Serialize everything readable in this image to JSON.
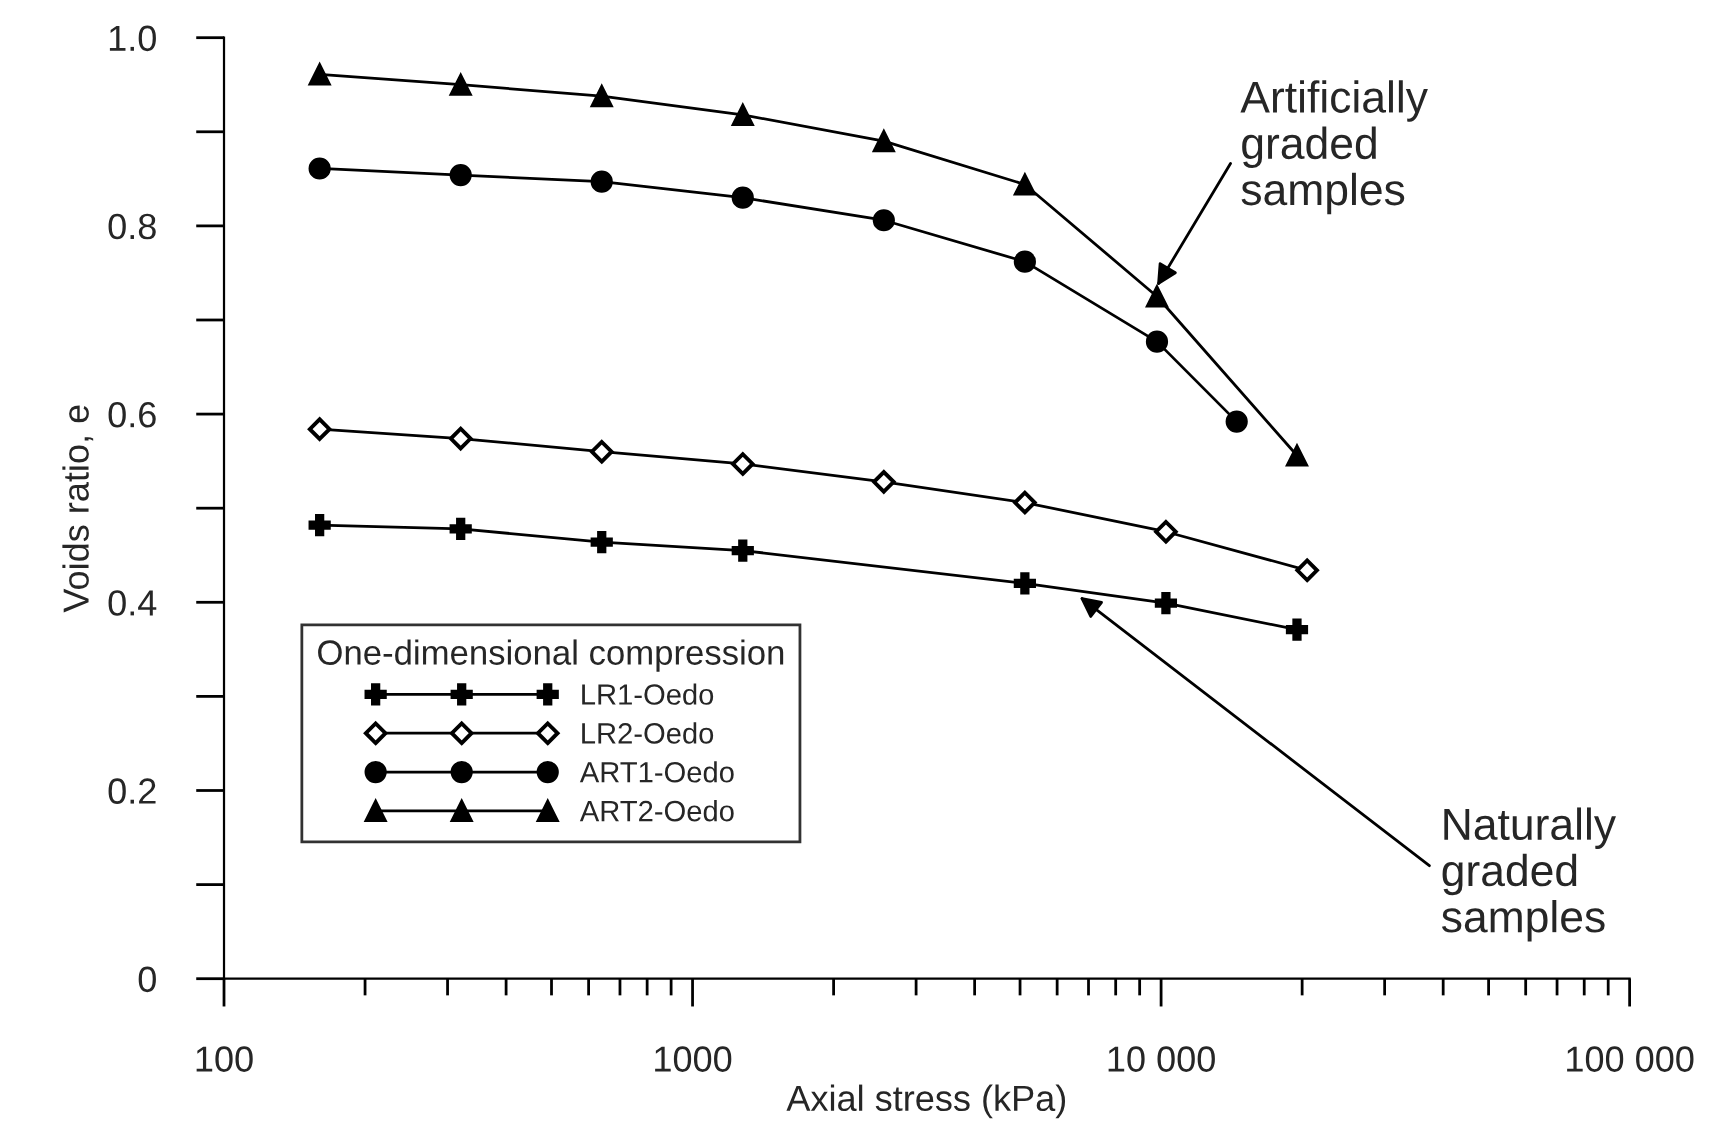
{
  "chart_data": {
    "type": "line",
    "xlabel": "Axial stress (kPa)",
    "ylabel": "Voids ratio, e",
    "legend_title": "One-dimensional compression",
    "log": "x",
    "xlim": [
      100,
      100000
    ],
    "ylim": [
      0,
      1.0
    ],
    "xticks": [
      100,
      1000,
      {
        "value": 10000,
        "label": "10 000"
      },
      {
        "value": 100000,
        "label": "100 000"
      }
    ],
    "yticks": [
      0,
      {
        "value": 0.1,
        "label": null
      },
      0.2,
      {
        "value": 0.3,
        "label": null
      },
      0.4,
      {
        "value": 0.5,
        "label": null
      },
      0.6,
      {
        "value": 0.7,
        "label": null
      },
      0.8,
      {
        "value": 0.9,
        "label": null
      },
      {
        "value": 1.0,
        "label": "1.0"
      }
    ],
    "grid": false,
    "legend": "bottom left",
    "series": [
      {
        "name": "LR1-Oedo",
        "color": "#000000",
        "marker": "cross",
        "x": [
          160,
          320,
          640,
          1280,
          5120,
          10240,
          19500
        ],
        "values": [
          0.482,
          0.478,
          0.464,
          0.455,
          0.42,
          0.399,
          0.371
        ]
      },
      {
        "name": "LR2-Oedo",
        "color": "#000000",
        "marker": "diamond",
        "x": [
          160,
          320,
          640,
          1280,
          2560,
          5120,
          10240,
          20500
        ],
        "values": [
          0.584,
          0.574,
          0.56,
          0.547,
          0.528,
          0.506,
          0.475,
          0.434
        ]
      },
      {
        "name": "ART1-Oedo",
        "color": "#000000",
        "marker": "circle",
        "x": [
          160,
          320,
          640,
          1280,
          2560,
          5120,
          9800,
          14500
        ],
        "values": [
          0.861,
          0.854,
          0.847,
          0.83,
          0.806,
          0.762,
          0.677,
          0.592
        ]
      },
      {
        "name": "ART2-Oedo",
        "color": "#000000",
        "marker": "triangle",
        "x": [
          160,
          320,
          640,
          1280,
          2560,
          5120,
          9800,
          19500
        ],
        "values": [
          0.961,
          0.95,
          0.938,
          0.918,
          0.89,
          0.844,
          0.725,
          0.556
        ]
      }
    ],
    "annotations": [
      {
        "text": "Artificially\ngraded\nsamples",
        "x": 9800,
        "y": 0.736
      },
      {
        "text": "Naturally\ngraded\nsamples",
        "x": 6700,
        "y": 0.406
      }
    ]
  }
}
